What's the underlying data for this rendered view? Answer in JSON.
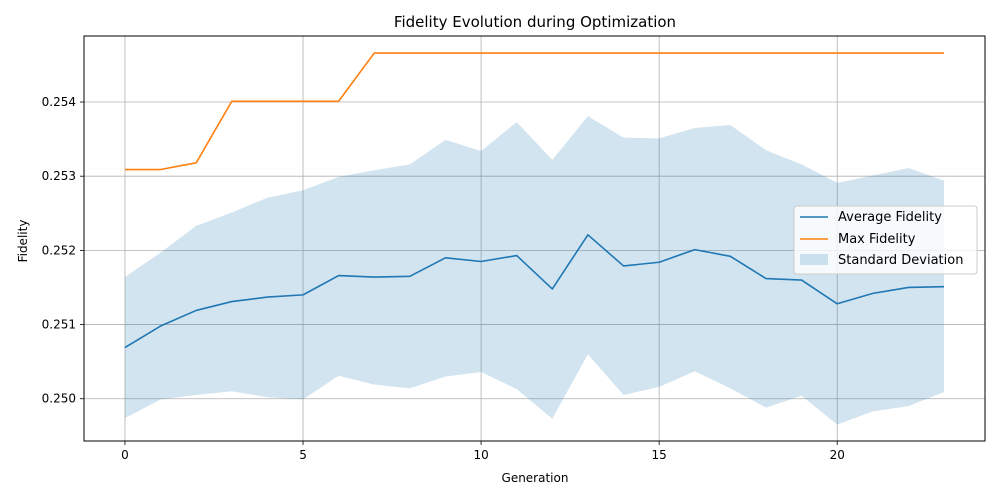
{
  "chart_data": {
    "type": "line",
    "title": "Fidelity Evolution during Optimization",
    "xlabel": "Generation",
    "ylabel": "Fidelity",
    "xlim": [
      -1.15,
      24.15
    ],
    "ylim": [
      0.24943,
      0.25489
    ],
    "xticks": [
      0,
      5,
      10,
      15,
      20
    ],
    "xtick_labels": [
      "0",
      "5",
      "10",
      "15",
      "20"
    ],
    "yticks": [
      0.25,
      0.251,
      0.252,
      0.253,
      0.254
    ],
    "ytick_labels": [
      "0.250",
      "0.251",
      "0.252",
      "0.253",
      "0.254"
    ],
    "grid": true,
    "legend_position": "center-right",
    "x": [
      0,
      1,
      2,
      3,
      4,
      5,
      6,
      7,
      8,
      9,
      10,
      11,
      12,
      13,
      14,
      15,
      16,
      17,
      18,
      19,
      20,
      21,
      22,
      23
    ],
    "series": [
      {
        "name": "Average Fidelity",
        "kind": "line",
        "color": "#1f77b4",
        "values": [
          0.25069,
          0.25098,
          0.25119,
          0.25131,
          0.25137,
          0.2514,
          0.25166,
          0.25164,
          0.25165,
          0.2519,
          0.25185,
          0.25193,
          0.25148,
          0.25221,
          0.25179,
          0.25184,
          0.25201,
          0.25192,
          0.25162,
          0.2516,
          0.25128,
          0.25142,
          0.2515,
          0.25151
        ]
      },
      {
        "name": "Max Fidelity",
        "kind": "line",
        "color": "#ff7f0e",
        "values": [
          0.25309,
          0.25309,
          0.25318,
          0.25401,
          0.25401,
          0.25401,
          0.25401,
          0.25466,
          0.25466,
          0.25466,
          0.25466,
          0.25466,
          0.25466,
          0.25466,
          0.25466,
          0.25466,
          0.25466,
          0.25466,
          0.25466,
          0.25466,
          0.25466,
          0.25466,
          0.25466,
          0.25466
        ]
      },
      {
        "name": "Standard Deviation",
        "kind": "band",
        "color": "#1f77b4",
        "opacity": 0.2,
        "upper": [
          0.25164,
          0.25197,
          0.25233,
          0.25251,
          0.25271,
          0.25281,
          0.25299,
          0.25308,
          0.25316,
          0.25349,
          0.25334,
          0.25373,
          0.25322,
          0.25381,
          0.25352,
          0.25351,
          0.25365,
          0.25369,
          0.25335,
          0.25316,
          0.25291,
          0.25301,
          0.25311,
          0.25294
        ],
        "lower": [
          0.24974,
          0.24999,
          0.25005,
          0.2501,
          0.25002,
          0.24999,
          0.25031,
          0.25019,
          0.25014,
          0.2503,
          0.25036,
          0.25013,
          0.24973,
          0.2506,
          0.25005,
          0.25016,
          0.25037,
          0.25014,
          0.24988,
          0.25004,
          0.24965,
          0.24983,
          0.2499,
          0.25009
        ]
      }
    ]
  }
}
